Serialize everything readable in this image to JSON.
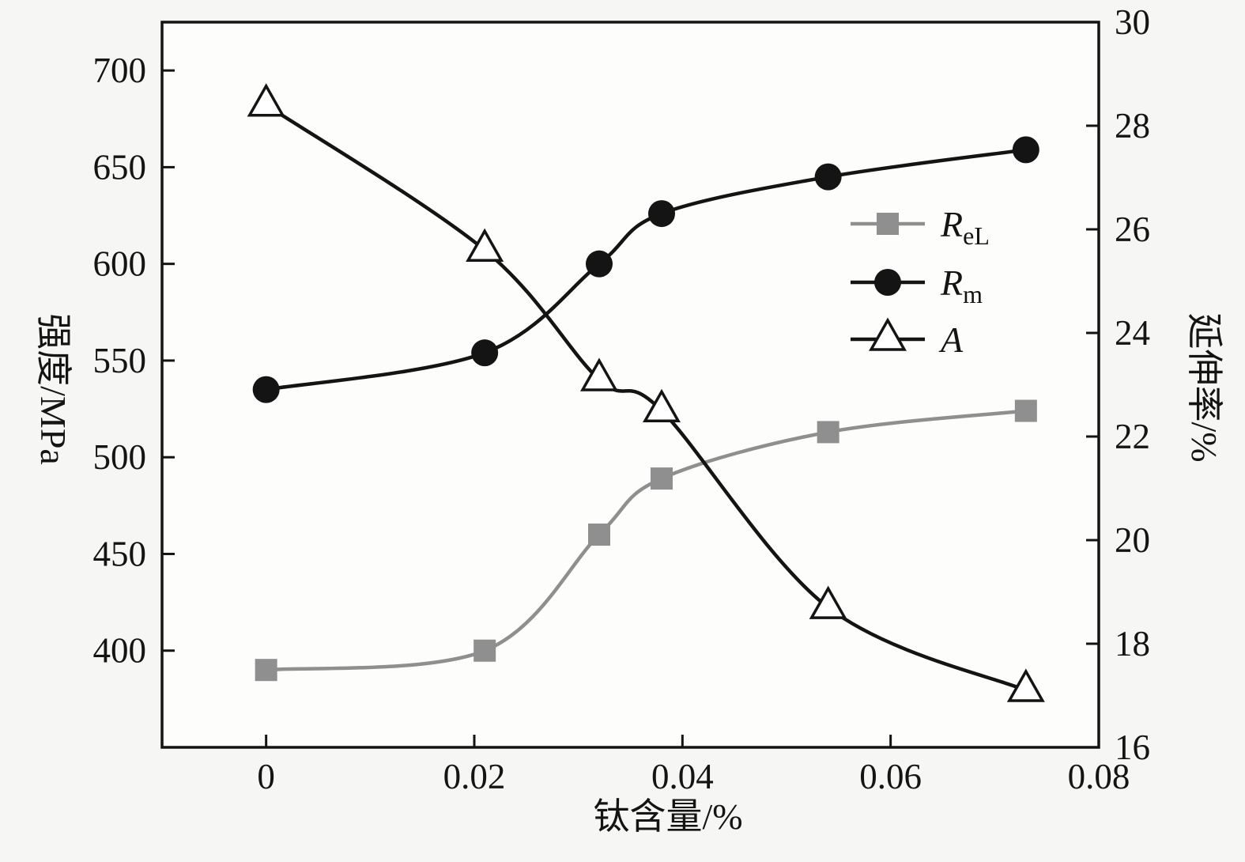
{
  "figure": {
    "background": "#f6f6f4",
    "plot_background": "#fdfdfc",
    "axis_color": "#141414",
    "text_color": "#141414"
  },
  "chart_data": {
    "type": "line",
    "x": [
      0,
      0.021,
      0.032,
      0.038,
      0.054,
      0.073
    ],
    "series": [
      {
        "name": "ReL",
        "legend_main": "R",
        "legend_sub": "eL",
        "axis": "left",
        "color": "#8f8f8f",
        "marker": "square",
        "values": [
          390,
          400,
          460,
          489,
          513,
          524
        ]
      },
      {
        "name": "Rm",
        "legend_main": "R",
        "legend_sub": "m",
        "axis": "left",
        "color": "#141414",
        "marker": "circle",
        "values": [
          535,
          554,
          600,
          626,
          645,
          659
        ]
      },
      {
        "name": "A",
        "legend_main": "A",
        "legend_sub": "",
        "axis": "right",
        "color": "#141414",
        "marker": "triangle",
        "marker_fill": "#ffffff",
        "values": [
          28.4,
          25.6,
          23.1,
          22.5,
          18.7,
          17.1
        ]
      }
    ],
    "xlabel": "钛含量/%",
    "ylabel_left": "强度/MPa",
    "ylabel_right": "延伸率/%",
    "xlim": [
      -0.01,
      0.08
    ],
    "xticks": [
      0,
      0.02,
      0.04,
      0.06,
      0.08
    ],
    "ylim_left": [
      350,
      725
    ],
    "yticks_left": [
      400,
      450,
      500,
      550,
      600,
      650,
      700
    ],
    "ylim_right": [
      16,
      30
    ],
    "yticks_right": [
      16,
      18,
      20,
      22,
      24,
      26,
      28,
      30
    ],
    "grid": false,
    "legend": {
      "position": "center-right-inside",
      "entries": [
        "ReL",
        "Rm",
        "A"
      ]
    }
  }
}
